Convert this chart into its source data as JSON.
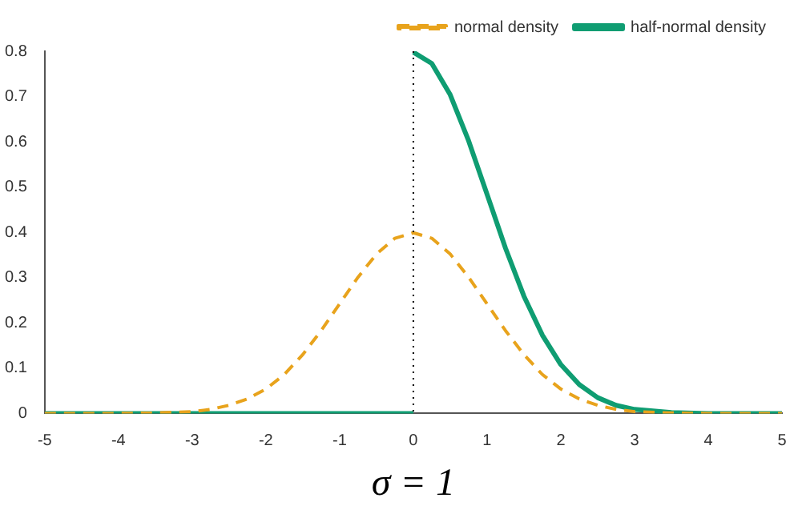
{
  "chart_data": {
    "type": "line",
    "xlabel": "σ = 1",
    "xlim": [
      -5,
      5
    ],
    "xticks": [
      -5,
      -4,
      -3,
      -2,
      -1,
      0,
      1,
      2,
      3,
      4,
      5
    ],
    "ylim": [
      0,
      0.8
    ],
    "yticks": [
      0,
      0.1,
      0.2,
      0.3,
      0.4,
      0.5,
      0.6,
      0.7,
      0.8
    ],
    "grid": false,
    "legend": "top right",
    "marker": "none",
    "series": [
      {
        "name": "half-normal density",
        "color": "#0f9d72",
        "line_style": "solid",
        "x": [
          -5,
          0,
          0,
          0.25,
          0.5,
          0.75,
          1,
          1.25,
          1.5,
          1.75,
          2,
          2.25,
          2.5,
          2.75,
          3,
          3.5,
          4,
          5
        ],
        "values": [
          0,
          0,
          0.798,
          0.773,
          0.704,
          0.602,
          0.484,
          0.365,
          0.259,
          0.173,
          0.108,
          0.064,
          0.035,
          0.018,
          0.009,
          0.002,
          0,
          0
        ]
      },
      {
        "name": "normal density",
        "color": "#e8a31c",
        "line_style": "dashed",
        "x": [
          -5,
          -4,
          -3.5,
          -3,
          -2.75,
          -2.5,
          -2.25,
          -2,
          -1.75,
          -1.5,
          -1.25,
          -1,
          -0.75,
          -0.5,
          -0.25,
          0,
          0.25,
          0.5,
          0.75,
          1,
          1.25,
          1.5,
          1.75,
          2,
          2.25,
          2.5,
          2.75,
          3,
          3.5,
          4,
          5
        ],
        "values": [
          0,
          0,
          0.001,
          0.004,
          0.009,
          0.018,
          0.032,
          0.054,
          0.086,
          0.13,
          0.183,
          0.242,
          0.301,
          0.352,
          0.387,
          0.399,
          0.387,
          0.352,
          0.301,
          0.242,
          0.183,
          0.13,
          0.086,
          0.054,
          0.032,
          0.018,
          0.009,
          0.004,
          0.001,
          0,
          0
        ]
      }
    ],
    "ref_lines": [
      {
        "axis": "x",
        "value": 0,
        "color": "#000000",
        "line_style": "dotted"
      }
    ]
  }
}
